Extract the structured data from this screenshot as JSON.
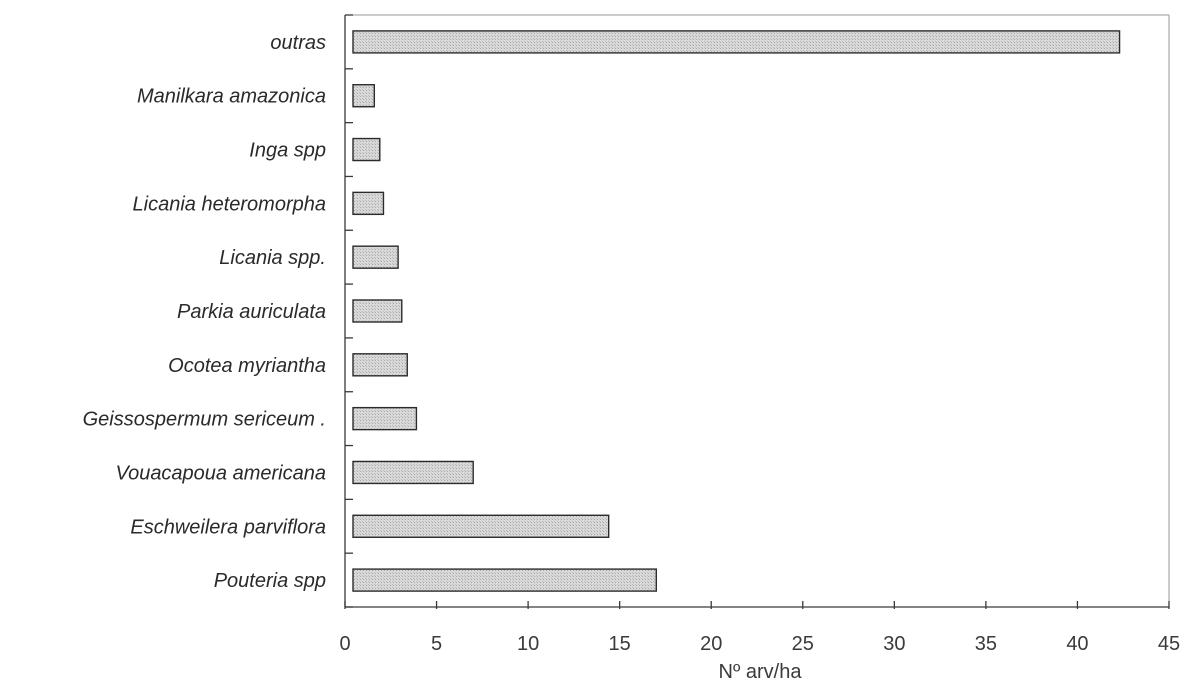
{
  "chart_data": {
    "type": "bar",
    "orientation": "horizontal",
    "categories": [
      "outras",
      "Manilkara amazonica",
      "Inga spp",
      "Licania heteromorpha",
      "Licania spp.",
      "Parkia auriculata",
      "Ocotea myriantha",
      "Geissospermum sericeum .",
      "Vouacapoua americana",
      "Eschweilera parviflora",
      "Pouteria spp"
    ],
    "values": [
      42.3,
      1.6,
      1.9,
      2.1,
      2.9,
      3.1,
      3.4,
      3.9,
      7.0,
      14.4,
      17.0
    ],
    "xlabel": "Nº arv/ha",
    "ylabel": "",
    "title": "",
    "xlim": [
      0,
      45
    ],
    "xticks": [
      "0",
      "5",
      "10",
      "15",
      "20",
      "25",
      "30",
      "35",
      "40",
      "45"
    ],
    "grid": false,
    "legend": "none",
    "colors": {
      "bar_fill": "#d4d4d4",
      "bar_stroke": "#2b2b2b",
      "axis": "#3a3a3a",
      "frame": "#9a9a9a"
    }
  }
}
